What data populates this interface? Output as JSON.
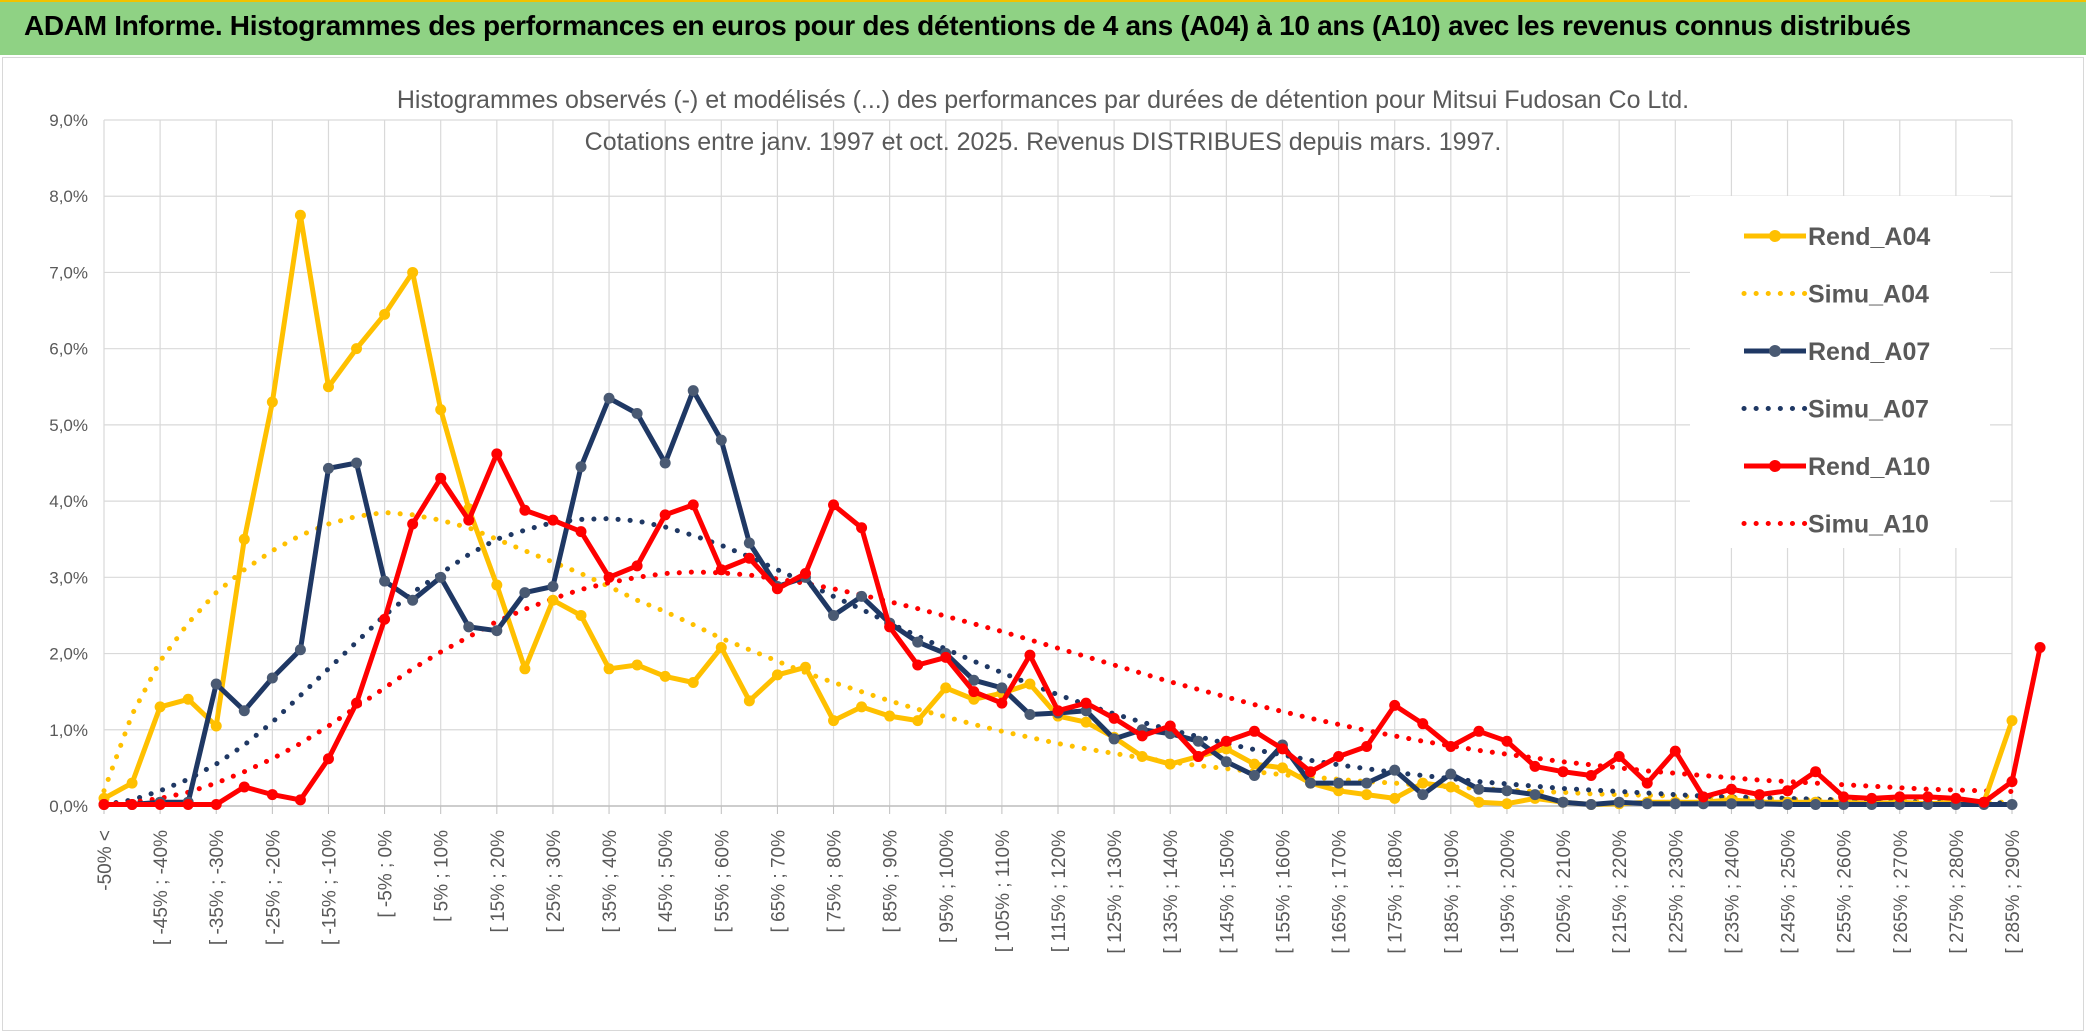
{
  "header": {
    "title": "ADAM Informe. Histogrammes des performances en euros pour des détentions de 4 ans (A04) à 10 ans (A10) avec les revenus connus distribués",
    "background": "#8fd284",
    "accent": "#f2c200"
  },
  "chart_data": {
    "type": "line",
    "title": "Histogrammes observés (-) et modélisés (...) des performances par durées de détention pour Mitsui Fudosan Co Ltd.",
    "subtitle": "Cotations entre janv. 1997 et oct. 2025. Revenus DISTRIBUES depuis mars. 1997.",
    "xlabel": "",
    "ylabel": "",
    "ylim": [
      0,
      9
    ],
    "y_ticks": [
      "0,0%",
      "1,0%",
      "2,0%",
      "3,0%",
      "4,0%",
      "5,0%",
      "6,0%",
      "7,0%",
      "8,0%",
      "9,0%"
    ],
    "grid": true,
    "legend_position": "right",
    "x_tick_labels": [
      "-50% <",
      "[ -45% ; -40%",
      "[ -35% ; -30%",
      "[ -25% ; -20%",
      "[ -15% ; -10%",
      "[ -5% ; 0%",
      "[ 5% ; 10%",
      "[ 15% ; 20%",
      "[ 25% ; 30%",
      "[ 35% ; 40%",
      "[ 45% ; 50%",
      "[ 55% ; 60%",
      "[ 65% ; 70%",
      "[ 75% ; 80%",
      "[ 85% ; 90%",
      "[ 95% ; 100%",
      "[ 105% ; 110%",
      "[ 115% ; 120%",
      "[ 125% ; 130%",
      "[ 135% ; 140%",
      "[ 145% ; 150%",
      "[ 155% ; 160%",
      "[ 165% ; 170%",
      "[ 175% ; 180%",
      "[ 185% ; 190%",
      "[ 195% ; 200%",
      "[ 205% ; 210%",
      "[ 215% ; 220%",
      "[ 225% ; 230%",
      "[ 235% ; 240%",
      "[ 245% ; 250%",
      "[ 255% ; 260%",
      "[ 265% ; 270%",
      "[ 275% ; 280%",
      "[ 285% ; 290%"
    ],
    "series": [
      {
        "name": "Rend_A04",
        "style": "solid",
        "color": "#ffc000",
        "values": [
          0.1,
          0.3,
          1.3,
          1.4,
          1.05,
          3.5,
          5.3,
          7.75,
          5.5,
          6.0,
          6.45,
          7.0,
          5.2,
          3.9,
          2.9,
          1.8,
          2.7,
          2.5,
          1.8,
          1.85,
          1.7,
          1.62,
          2.08,
          1.38,
          1.72,
          1.82,
          1.12,
          1.3,
          1.18,
          1.12,
          1.55,
          1.4,
          1.48,
          1.6,
          1.18,
          1.1,
          0.9,
          0.65,
          0.55,
          0.65,
          0.75,
          0.55,
          0.5,
          0.3,
          0.2,
          0.15,
          0.1,
          0.3,
          0.25,
          0.05,
          0.03,
          0.1,
          0.05,
          0.02,
          0.03,
          0.05,
          0.05,
          0.05,
          0.08,
          0.05,
          0.05,
          0.05,
          0.05,
          0.03,
          0.05,
          0.03,
          0.05,
          0.05,
          1.12
        ]
      },
      {
        "name": "Simu_A04",
        "style": "dotted",
        "color": "#ffc000",
        "values": [
          0.2,
          1.2,
          1.9,
          2.4,
          2.8,
          3.1,
          3.35,
          3.55,
          3.7,
          3.8,
          3.85,
          3.82,
          3.75,
          3.65,
          3.5,
          3.35,
          3.2,
          3.05,
          2.88,
          2.7,
          2.55,
          2.38,
          2.2,
          2.05,
          1.9,
          1.75,
          1.62,
          1.5,
          1.38,
          1.27,
          1.17,
          1.07,
          0.98,
          0.9,
          0.82,
          0.75,
          0.69,
          0.63,
          0.58,
          0.53,
          0.49,
          0.45,
          0.41,
          0.38,
          0.35,
          0.32,
          0.3,
          0.27,
          0.25,
          0.23,
          0.21,
          0.19,
          0.18,
          0.16,
          0.15,
          0.14,
          0.13,
          0.12,
          0.11,
          0.1,
          0.09,
          0.08,
          0.08,
          0.07,
          0.07,
          0.06,
          0.06,
          0.05,
          0.05
        ]
      },
      {
        "name": "Rend_A07",
        "style": "solid",
        "color": "#1f3864",
        "values": [
          0.02,
          0.02,
          0.05,
          0.05,
          1.6,
          1.25,
          1.68,
          2.05,
          4.43,
          4.5,
          2.95,
          2.7,
          3.0,
          2.35,
          2.3,
          2.8,
          2.88,
          4.45,
          5.35,
          5.15,
          4.5,
          5.45,
          4.8,
          3.45,
          2.88,
          3.0,
          2.5,
          2.75,
          2.4,
          2.15,
          2.0,
          1.65,
          1.55,
          1.2,
          1.22,
          1.25,
          0.88,
          1.0,
          0.95,
          0.85,
          0.58,
          0.4,
          0.8,
          0.3,
          0.3,
          0.3,
          0.47,
          0.15,
          0.42,
          0.22,
          0.2,
          0.15,
          0.05,
          0.02,
          0.05,
          0.03,
          0.03,
          0.03,
          0.03,
          0.03,
          0.02,
          0.02,
          0.02,
          0.02,
          0.02,
          0.02,
          0.02,
          0.02,
          0.02
        ]
      },
      {
        "name": "Simu_A07",
        "style": "dotted",
        "color": "#1f3864",
        "values": [
          0.02,
          0.08,
          0.2,
          0.35,
          0.55,
          0.8,
          1.1,
          1.45,
          1.8,
          2.15,
          2.5,
          2.8,
          3.05,
          3.3,
          3.5,
          3.62,
          3.72,
          3.76,
          3.77,
          3.74,
          3.66,
          3.55,
          3.42,
          3.27,
          3.1,
          2.93,
          2.75,
          2.58,
          2.4,
          2.23,
          2.06,
          1.9,
          1.75,
          1.6,
          1.46,
          1.33,
          1.21,
          1.1,
          1.0,
          0.91,
          0.82,
          0.74,
          0.67,
          0.6,
          0.54,
          0.49,
          0.44,
          0.4,
          0.36,
          0.32,
          0.29,
          0.26,
          0.23,
          0.21,
          0.19,
          0.17,
          0.15,
          0.13,
          0.12,
          0.11,
          0.1,
          0.09,
          0.08,
          0.07,
          0.06,
          0.05,
          0.05,
          0.04,
          0.04
        ]
      },
      {
        "name": "Rend_A10",
        "style": "solid",
        "color": "#ff0000",
        "values": [
          0.02,
          0.02,
          0.02,
          0.02,
          0.02,
          0.25,
          0.15,
          0.08,
          0.62,
          1.35,
          2.45,
          3.7,
          4.3,
          3.75,
          4.62,
          3.88,
          3.75,
          3.6,
          3.0,
          3.15,
          3.82,
          3.95,
          3.1,
          3.25,
          2.85,
          3.05,
          3.95,
          3.65,
          2.35,
          1.85,
          1.95,
          1.5,
          1.35,
          1.98,
          1.25,
          1.35,
          1.15,
          0.92,
          1.05,
          0.65,
          0.85,
          0.98,
          0.75,
          0.45,
          0.65,
          0.78,
          1.32,
          1.08,
          0.78,
          0.98,
          0.85,
          0.52,
          0.45,
          0.4,
          0.65,
          0.3,
          0.72,
          0.12,
          0.22,
          0.15,
          0.2,
          0.45,
          0.12,
          0.1,
          0.12,
          0.12,
          0.1,
          0.05,
          0.32,
          2.08
        ]
      },
      {
        "name": "Simu_A10",
        "style": "dotted",
        "color": "#ff0000",
        "values": [
          0.02,
          0.05,
          0.1,
          0.18,
          0.3,
          0.45,
          0.62,
          0.82,
          1.05,
          1.3,
          1.55,
          1.8,
          2.02,
          2.22,
          2.42,
          2.58,
          2.72,
          2.84,
          2.93,
          3.0,
          3.05,
          3.07,
          3.06,
          3.03,
          2.98,
          2.92,
          2.85,
          2.77,
          2.68,
          2.59,
          2.49,
          2.39,
          2.29,
          2.18,
          2.07,
          1.96,
          1.85,
          1.74,
          1.63,
          1.53,
          1.43,
          1.33,
          1.24,
          1.15,
          1.07,
          0.99,
          0.92,
          0.85,
          0.79,
          0.73,
          0.68,
          0.63,
          0.58,
          0.54,
          0.5,
          0.46,
          0.43,
          0.4,
          0.37,
          0.34,
          0.32,
          0.3,
          0.28,
          0.26,
          0.24,
          0.22,
          0.21,
          0.2,
          0.19
        ]
      }
    ]
  }
}
